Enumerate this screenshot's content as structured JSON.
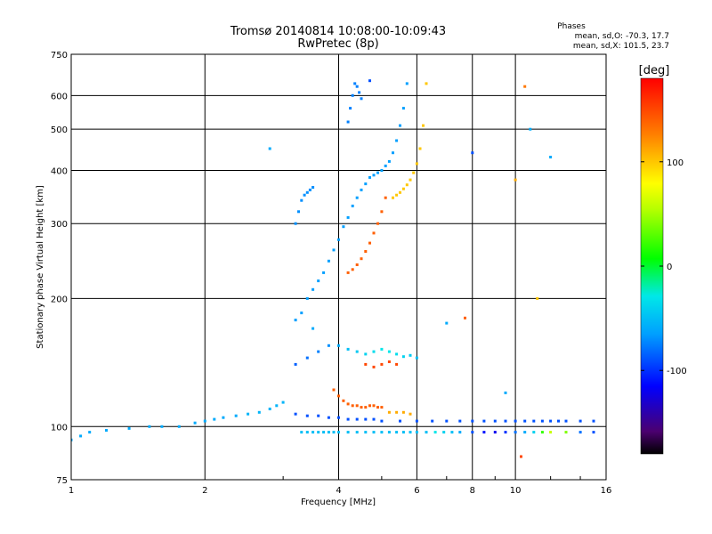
{
  "chart_data": {
    "type": "scatter",
    "title": "Tromsø 20140814 10:08:00-10:09:43",
    "subtitle": "RwPretec (8p)",
    "xlabel": "Frequency [MHz]",
    "ylabel": "Stationary phase Virtual Height [km]",
    "x_scale": "log",
    "y_scale": "log",
    "xlim": [
      1,
      16
    ],
    "ylim": [
      75,
      750
    ],
    "x_ticks": [
      1,
      2,
      4,
      6,
      8,
      10,
      16
    ],
    "x_tick_labels": [
      "1",
      "2",
      "4",
      "6",
      "8",
      "10",
      "16"
    ],
    "y_ticks": [
      75,
      100,
      200,
      300,
      400,
      500,
      600,
      750
    ],
    "y_tick_labels": [
      "75",
      "100",
      "200",
      "300",
      "400",
      "500",
      "600",
      "750"
    ],
    "grid": true,
    "phases_info": {
      "title": "Phases",
      "line_o": "mean, sd,O: -70.3, 17.7",
      "line_x": "mean, sd,X: 101.5, 23.7"
    },
    "colorbar": {
      "title": "[deg]",
      "range": [
        -180,
        180
      ],
      "ticks": [
        100,
        0,
        -100
      ],
      "tick_labels": [
        "100",
        "0",
        "-100"
      ],
      "colormap": "rainbow"
    },
    "series": [
      {
        "x": [
          1.0,
          1.05,
          1.1,
          1.2,
          1.35,
          1.5,
          1.6,
          1.75,
          1.9,
          2.0,
          2.1,
          2.2,
          2.35,
          2.5,
          2.65,
          2.8,
          2.9,
          3.0
        ],
        "y": [
          93,
          95,
          97,
          98,
          99,
          100,
          100,
          100,
          102,
          103,
          104,
          105,
          106,
          107,
          108,
          110,
          112,
          114
        ],
        "phase": [
          -60,
          -60,
          -60,
          -60,
          -60,
          -60,
          -60,
          -60,
          -60,
          -60,
          -60,
          -60,
          -60,
          -55,
          -55,
          -55,
          -55,
          -55
        ]
      },
      {
        "x": [
          3.2,
          3.3,
          3.4,
          3.5,
          3.6,
          3.7,
          3.8,
          3.9,
          4.0,
          4.1,
          4.2,
          4.3,
          4.4,
          4.5,
          4.6,
          4.7,
          4.8,
          4.9,
          5.0,
          5.1,
          5.2,
          5.3,
          5.4,
          5.5,
          5.6,
          5.7
        ],
        "y": [
          178,
          185,
          200,
          210,
          220,
          230,
          245,
          260,
          275,
          295,
          310,
          330,
          345,
          360,
          372,
          385,
          390,
          395,
          400,
          410,
          420,
          440,
          470,
          510,
          560,
          640
        ],
        "phase": [
          -65,
          -65,
          -65,
          -65,
          -65,
          -65,
          -65,
          -65,
          -65,
          -65,
          -65,
          -65,
          -65,
          -65,
          -65,
          -65,
          -65,
          -65,
          -65,
          -65,
          -65,
          -65,
          -65,
          -65,
          -65,
          -65
        ]
      },
      {
        "x": [
          3.2,
          3.25,
          3.3,
          3.35,
          3.4,
          3.45,
          3.5
        ],
        "y": [
          300,
          320,
          340,
          350,
          355,
          360,
          365
        ],
        "phase": [
          -70,
          -70,
          -70,
          -70,
          -70,
          -70,
          -70
        ]
      },
      {
        "x": [
          4.2,
          4.25,
          4.3,
          4.35,
          4.4,
          4.45,
          4.5
        ],
        "y": [
          520,
          560,
          600,
          640,
          630,
          610,
          590
        ],
        "phase": [
          -75,
          -75,
          -75,
          -75,
          -75,
          -75,
          -75
        ]
      },
      {
        "x": [
          4.2,
          4.3,
          4.4,
          4.5,
          4.6,
          4.7,
          4.8,
          4.9,
          5.0,
          5.1
        ],
        "y": [
          230,
          234,
          240,
          248,
          258,
          270,
          285,
          300,
          320,
          345
        ],
        "phase": [
          140,
          140,
          140,
          140,
          140,
          140,
          140,
          140,
          140,
          140
        ]
      },
      {
        "x": [
          5.3,
          5.4,
          5.5,
          5.6,
          5.7,
          5.8,
          5.9,
          6.0,
          6.1,
          6.2,
          6.3
        ],
        "y": [
          345,
          350,
          355,
          362,
          370,
          380,
          395,
          415,
          450,
          510,
          640
        ],
        "phase": [
          100,
          100,
          100,
          100,
          100,
          100,
          100,
          100,
          100,
          100,
          100
        ]
      },
      {
        "x": [
          3.2,
          3.4,
          3.6,
          3.8,
          4.0,
          4.2,
          4.4,
          4.6,
          4.8,
          5.0,
          5.2,
          5.4,
          5.6,
          5.8,
          6.0
        ],
        "y": [
          140,
          145,
          150,
          155,
          155,
          152,
          150,
          148,
          150,
          152,
          150,
          148,
          146,
          147,
          145
        ],
        "phase": [
          -85,
          -80,
          -75,
          -70,
          -60,
          -50,
          -45,
          -40,
          -35,
          -30,
          -30,
          -35,
          -40,
          -45,
          -50
        ]
      },
      {
        "x": [
          4.6,
          4.8,
          5.0,
          5.2,
          5.4
        ],
        "y": [
          140,
          138,
          140,
          142,
          140
        ],
        "phase": [
          150,
          150,
          150,
          150,
          150
        ]
      },
      {
        "x": [
          3.9,
          4.0,
          4.1,
          4.2,
          4.3,
          4.4,
          4.5,
          4.6,
          4.7,
          4.8,
          4.9,
          5.0
        ],
        "y": [
          122,
          118,
          115,
          113,
          112,
          112,
          111,
          111,
          112,
          112,
          111,
          111
        ],
        "phase": [
          140,
          140,
          140,
          140,
          140,
          140,
          140,
          140,
          140,
          140,
          140,
          140
        ]
      },
      {
        "x": [
          5.2,
          5.4,
          5.6,
          5.8
        ],
        "y": [
          108,
          108,
          108,
          107
        ],
        "phase": [
          110,
          110,
          110,
          110
        ]
      },
      {
        "x": [
          3.2,
          3.4,
          3.6,
          3.8,
          4.0,
          4.2,
          4.4,
          4.6,
          4.8,
          5.0,
          5.5,
          6.0,
          6.5,
          7.0,
          7.5,
          8.0,
          8.5,
          9.0,
          9.5,
          10.0,
          10.5,
          11.0,
          11.5,
          12.0,
          12.5,
          13.0,
          14.0,
          15.0
        ],
        "y": [
          107,
          106,
          106,
          105,
          105,
          104,
          104,
          104,
          104,
          103,
          103,
          103,
          103,
          103,
          103,
          103,
          103,
          103,
          103,
          103,
          103,
          103,
          103,
          103,
          103,
          103,
          103,
          103
        ],
        "phase": [
          -90,
          -90,
          -90,
          -90,
          -90,
          -90,
          -90,
          -90,
          -90,
          -90,
          -90,
          -90,
          -90,
          -90,
          -90,
          -90,
          -90,
          -90,
          -90,
          -90,
          -90,
          -90,
          -90,
          -90,
          -90,
          -90,
          -90,
          -90
        ]
      },
      {
        "x": [
          3.3,
          3.4,
          3.5,
          3.6,
          3.7,
          3.8,
          3.9,
          4.0,
          4.2,
          4.4,
          4.6,
          4.8,
          5.0,
          5.2,
          5.4,
          5.6,
          5.8,
          6.0,
          6.3,
          6.6,
          6.9,
          7.2,
          7.5,
          8.0,
          8.5,
          9.0,
          9.5,
          10.0,
          10.5,
          11.0,
          11.5,
          12.0,
          13.0,
          14.0,
          15.0
        ],
        "y": [
          97,
          97,
          97,
          97,
          97,
          97,
          97,
          97,
          97,
          97,
          97,
          97,
          97,
          97,
          97,
          97,
          97,
          97,
          97,
          97,
          97,
          97,
          97,
          97,
          97,
          97,
          97,
          97,
          97,
          97,
          97,
          97,
          97,
          97,
          97
        ],
        "phase": [
          -50,
          -50,
          -50,
          -50,
          -50,
          -50,
          -50,
          -50,
          -50,
          -50,
          -50,
          -50,
          -50,
          -50,
          -50,
          -50,
          -50,
          -50,
          -50,
          -30,
          -40,
          -50,
          -60,
          -90,
          -110,
          -120,
          -100,
          -80,
          -60,
          -40,
          20,
          60,
          40,
          -80,
          -90
        ]
      },
      {
        "x": [
          2.8,
          3.5,
          4.7,
          7.0,
          7.7,
          8.0,
          9.5,
          10.0,
          10.3,
          10.5,
          10.8,
          11.2,
          12.0
        ],
        "y": [
          450,
          170,
          650,
          175,
          180,
          440,
          120,
          380,
          85,
          630,
          500,
          200,
          430
        ],
        "phase": [
          -60,
          -60,
          -90,
          -60,
          140,
          -90,
          -60,
          110,
          150,
          130,
          -60,
          100,
          -60
        ]
      }
    ]
  }
}
